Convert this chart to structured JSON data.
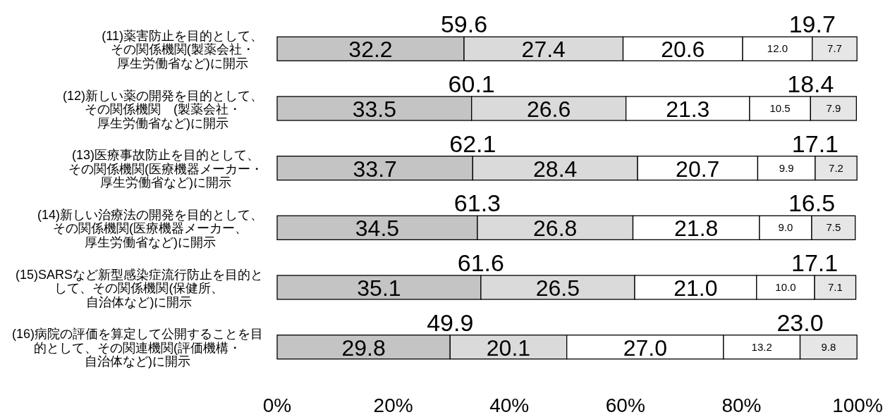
{
  "chart_data": {
    "type": "bar",
    "orientation": "horizontal",
    "stacked": true,
    "categories": [
      "(11)薬害防止を目的として、その関係機関(製薬会社・厚生労働省など)に開示",
      "(12)新しい薬の開発を目的として、その関係機関　(製薬会社・厚生労働省など)に開示",
      "(13)医療事故防止を目的として、その関係機関(医療機器メーカー・厚生労働省など)に開示",
      "(14)新しい治療法の開発を目的として、その関係機関(医療機器メーカー、厚生労働省など)に開示",
      "(15)SARSなど新型感染症流行防止を目的として、その関係機関(保健所、自治体など)に開示",
      "(16)病院の評価を算定して公開することを目的として、その関連機関(評価機構・自治体など)に開示"
    ],
    "series": [
      {
        "color": "#c4c4c4",
        "values": [
          32.2,
          33.5,
          33.7,
          34.5,
          35.1,
          29.8
        ],
        "value_labels": [
          "32.2",
          "33.5",
          "33.7",
          "34.5",
          "35.1",
          "29.8"
        ]
      },
      {
        "color": "#dadada",
        "values": [
          27.4,
          26.6,
          28.4,
          26.8,
          26.5,
          20.1
        ],
        "value_labels": [
          "27.4",
          "26.6",
          "28.4",
          "26.8",
          "26.5",
          "20.1"
        ]
      },
      {
        "color": "#ffffff",
        "values": [
          20.6,
          21.3,
          20.7,
          21.8,
          21.0,
          27.0
        ],
        "value_labels": [
          "20.6",
          "21.3",
          "20.7",
          "21.8",
          "21.0",
          "27.0"
        ]
      },
      {
        "color": "#ffffff",
        "values": [
          12.0,
          10.5,
          9.9,
          9.0,
          10.0,
          13.2
        ],
        "value_labels": [
          "12.0",
          "10.5",
          "9.9",
          "9.0",
          "10.0",
          "13.2"
        ]
      },
      {
        "color": "#e6e6e6",
        "values": [
          7.7,
          7.9,
          7.2,
          7.5,
          7.1,
          9.8
        ],
        "value_labels": [
          "7.7",
          "7.9",
          "7.2",
          "7.5",
          "7.1",
          "9.8"
        ]
      }
    ],
    "xlim": [
      0,
      100
    ],
    "xticks": [
      {
        "value": 0,
        "label": "0%"
      },
      {
        "value": 20,
        "label": "20%"
      },
      {
        "value": 40,
        "label": "40%"
      },
      {
        "value": 60,
        "label": "60%"
      },
      {
        "value": 80,
        "label": "80%"
      },
      {
        "value": 100,
        "label": "100%"
      }
    ],
    "annotations": [
      {
        "text": "59.6",
        "x": 32.2,
        "y": "(11)薬害防止を目的として、その関係機関(製薬会社・厚生労働省など)に開示"
      },
      {
        "text": "19.7",
        "x": 92.2,
        "y": "(11)薬害防止を目的として、その関係機関(製薬会社・厚生労働省など)に開示"
      },
      {
        "text": "60.1",
        "x": 33.5,
        "y": "(12)新しい薬の開発を目的として、その関係機関　(製薬会社・厚生労働省など)に開示"
      },
      {
        "text": "18.4",
        "x": 91.9,
        "y": "(12)新しい薬の開発を目的として、その関係機関　(製薬会社・厚生労働省など)に開示"
      },
      {
        "text": "62.1",
        "x": 33.7,
        "y": "(13)医療事故防止を目的として、その関係機関(医療機器メーカー・厚生労働省など)に開示"
      },
      {
        "text": "17.1",
        "x": 92.7,
        "y": "(13)医療事故防止を目的として、その関係機関(医療機器メーカー・厚生労働省など)に開示"
      },
      {
        "text": "61.3",
        "x": 34.5,
        "y": "(14)新しい治療法の開発を目的として、その関係機関(医療機器メーカー、厚生労働省など)に開示"
      },
      {
        "text": "16.5",
        "x": 92.1,
        "y": "(14)新しい治療法の開発を目的として、その関係機関(医療機器メーカー、厚生労働省など)に開示"
      },
      {
        "text": "61.6",
        "x": 35.1,
        "y": "(15)SARSなど新型感染症流行防止を目的として、その関係機関(保健所、自治体など)に開示"
      },
      {
        "text": "17.1",
        "x": 92.6,
        "y": "(15)SARSなど新型感染症流行防止を目的として、その関係機関(保健所、自治体など)に開示"
      },
      {
        "text": "49.9",
        "x": 29.8,
        "y": "(16)病院の評価を算定して公開することを目的として、その関連機関(評価機構・自治体など)に開示"
      },
      {
        "text": "23.0",
        "x": 90.1,
        "y": "(16)病院の評価を算定して公開することを目的として、その関連機関(評価機構・自治体など)に開示"
      }
    ]
  }
}
